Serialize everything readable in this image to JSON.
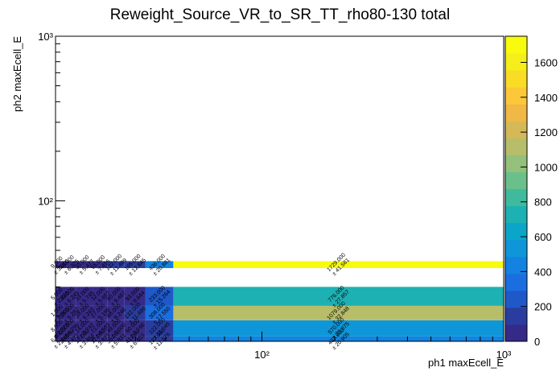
{
  "chart_data": {
    "type": "heatmap",
    "title": "Reweight_Source_VR_to_SR_TT_rho80-130 total",
    "xlabel": "ph1 maxEcell_E",
    "ylabel": "ph2 maxEcell_E",
    "x_scale": "log",
    "y_scale": "log",
    "xlim": [
      14,
      1000
    ],
    "ylim": [
      14,
      1000
    ],
    "x_ticks": [
      {
        "value": 100,
        "label": "10²"
      },
      {
        "value": 1000,
        "label": "10³"
      }
    ],
    "y_ticks": [
      {
        "value": 100,
        "label": "10²"
      },
      {
        "value": 1000,
        "label": "10³"
      }
    ],
    "colorbar": {
      "min": 0,
      "max": 1750,
      "ticks": [
        0,
        200,
        400,
        600,
        800,
        1000,
        1200,
        1400,
        1600
      ],
      "colors": [
        "#352a87",
        "#2a3d9e",
        "#1f58c9",
        "#1a6ee0",
        "#1382e0",
        "#0e96d8",
        "#0ba5c9",
        "#1eb1b4",
        "#3fba9c",
        "#6ac08a",
        "#93c07a",
        "#b7bd69",
        "#d6b957",
        "#f0b945",
        "#fcc83a",
        "#f9dc24",
        "#f5ee1a",
        "#f9fb0e"
      ]
    },
    "x_bins": [
      14,
      15,
      17,
      20,
      23,
      27,
      33,
      43,
      1000
    ],
    "y_bins": [
      14,
      15,
      18.8,
      23,
      30,
      39,
      43,
      1000
    ],
    "cells": [
      {
        "x": 0,
        "y": 0,
        "value": 6,
        "label": "6.000",
        "error": "± 2.449"
      },
      {
        "x": 1,
        "y": 0,
        "value": 20,
        "label": "20.000",
        "error": "± 4.472"
      },
      {
        "x": 2,
        "y": 0,
        "value": 12,
        "label": "12.000",
        "error": "± 3.464"
      },
      {
        "x": 3,
        "y": 0,
        "value": 17,
        "label": "17.000",
        "error": "± 3.873"
      },
      {
        "x": 4,
        "y": 0,
        "value": 35,
        "label": "35.000",
        "error": "± 5.831"
      },
      {
        "x": 5,
        "y": 0,
        "value": 41,
        "label": "41.000",
        "error": "± 6.403"
      },
      {
        "x": 6,
        "y": 0,
        "value": 137,
        "label": "137.000",
        "error": "± 11.576"
      },
      {
        "x": 7,
        "y": 0,
        "value": 437,
        "label": "437.000",
        "error": "± 20.905"
      },
      {
        "x": 0,
        "y": 1,
        "value": 8,
        "label": "8.000",
        "error": "± 2.828"
      },
      {
        "x": 1,
        "y": 1,
        "value": 23,
        "label": "23.000",
        "error": "± 4.796"
      },
      {
        "x": 2,
        "y": 1,
        "value": 14,
        "label": "14.000",
        "error": "± 3.742"
      },
      {
        "x": 3,
        "y": 1,
        "value": 21,
        "label": "21.000",
        "error": "± 4.583"
      },
      {
        "x": 4,
        "y": 1,
        "value": 49,
        "label": "49.000",
        "error": "± 7.000"
      },
      {
        "x": 5,
        "y": 1,
        "value": 60,
        "label": "60.000",
        "error": "± 7.746"
      },
      {
        "x": 6,
        "y": 1,
        "value": 122,
        "label": "122.000",
        "error": "± 11.045"
      },
      {
        "x": 7,
        "y": 1,
        "value": 570,
        "label": "570.000",
        "error": "± 23.875"
      },
      {
        "x": 0,
        "y": 2,
        "value": 1,
        "label": "1.000",
        "error": "± 1.000"
      },
      {
        "x": 1,
        "y": 2,
        "value": 28,
        "label": "28.000",
        "error": "± 5.292"
      },
      {
        "x": 2,
        "y": 2,
        "value": 18,
        "label": "18.000",
        "error": "± 4.243"
      },
      {
        "x": 3,
        "y": 2,
        "value": 27,
        "label": "27.000",
        "error": "± 5.196"
      },
      {
        "x": 4,
        "y": 2,
        "value": 68,
        "label": "68.000",
        "error": "± 8.246"
      },
      {
        "x": 5,
        "y": 2,
        "value": 132,
        "label": "132.000",
        "error": "± 11.489"
      },
      {
        "x": 6,
        "y": 2,
        "value": 308,
        "label": "308.000",
        "error": "± 17.550"
      },
      {
        "x": 7,
        "y": 2,
        "value": 1079,
        "label": "1079.000",
        "error": "± 32.848"
      },
      {
        "x": 0,
        "y": 3,
        "value": 5,
        "label": "5.000",
        "error": "± 2.236"
      },
      {
        "x": 1,
        "y": 3,
        "value": 39,
        "label": "39.000",
        "error": "± 6.245"
      },
      {
        "x": 2,
        "y": 3,
        "value": 33,
        "label": "33.000",
        "error": "± 5.745"
      },
      {
        "x": 3,
        "y": 3,
        "value": 32,
        "label": "32.000",
        "error": "± 5.657"
      },
      {
        "x": 4,
        "y": 3,
        "value": 90,
        "label": "90.000",
        "error": "± 9.487"
      },
      {
        "x": 5,
        "y": 3,
        "value": 93,
        "label": "93.000",
        "error": "± 9.644"
      },
      {
        "x": 6,
        "y": 3,
        "value": 233,
        "label": "233.000",
        "error": "± 15.264"
      },
      {
        "x": 7,
        "y": 3,
        "value": 776,
        "label": "776.000",
        "error": "± 27.857"
      },
      {
        "x": 0,
        "y": 5,
        "value": 9,
        "label": "9.000",
        "error": "± 3.000"
      },
      {
        "x": 1,
        "y": 5,
        "value": 40,
        "label": "40.000",
        "error": "± 6.325"
      },
      {
        "x": 2,
        "y": 5,
        "value": 30,
        "label": "30.000",
        "error": "± 5.477"
      },
      {
        "x": 3,
        "y": 5,
        "value": 55,
        "label": "55.000",
        "error": "± 7.416"
      },
      {
        "x": 4,
        "y": 5,
        "value": 132,
        "label": "132.000",
        "error": "± 11.489"
      },
      {
        "x": 5,
        "y": 5,
        "value": 165,
        "label": "165.000",
        "error": "± 12.845"
      },
      {
        "x": 6,
        "y": 5,
        "value": 436,
        "label": "436.000",
        "error": "± 20.881"
      },
      {
        "x": 7,
        "y": 5,
        "value": 1729,
        "label": "1729.000",
        "error": "± 41.581"
      }
    ]
  }
}
